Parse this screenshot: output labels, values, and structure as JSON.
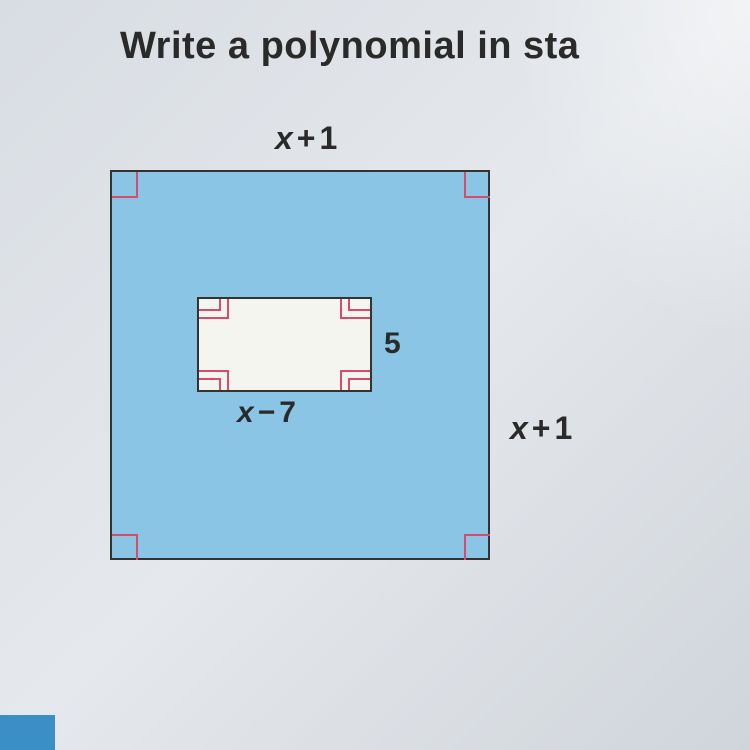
{
  "title": "Write a polynomial in sta",
  "diagram": {
    "type": "geometric-figure",
    "description": "Square with inner rectangle (shaded region)",
    "outer_square": {
      "fill_color": "#8bc5e6",
      "border_color": "#333333",
      "border_width": 2,
      "top_label": {
        "expression": "x + 1",
        "parts": [
          "x",
          "+",
          "1"
        ]
      },
      "right_label": {
        "expression": "x + 1",
        "parts": [
          "x",
          "+",
          "1"
        ]
      },
      "right_angle_marker_color": "#d94b6b",
      "marker_size": 24
    },
    "inner_rectangle": {
      "fill_color": "#f5f5f0",
      "border_color": "#333333",
      "border_width": 2,
      "right_label": "5",
      "bottom_label": {
        "expression": "x − 7",
        "parts": [
          "x",
          "−",
          "7"
        ]
      },
      "right_angle_marker_color": "#d94b6b",
      "position": "upper-center"
    },
    "background_color": "#e0e4e9",
    "label_fontsize": 32,
    "label_color": "#2a2a2a",
    "label_font_weight": "bold"
  },
  "ui": {
    "blue_tab_color": "#3b8fc7"
  }
}
